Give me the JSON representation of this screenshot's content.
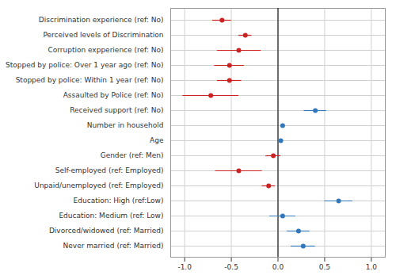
{
  "chart_data": {
    "type": "coefficient",
    "categories": [
      "Discrimination experience (ref: No)",
      "Perceived levels of Discrimination",
      "Corruption expperience (ref: No)",
      "Stopped by police: Over 1 year ago (ref: No)",
      "Stopped by police: Within 1 year (ref: No)",
      "Assaulted by Police (ref: No)",
      "Received support (ref: No)",
      "Number in household",
      "Age",
      "Gender (ref: Men)",
      "Self-employed (ref: Employed)",
      "Unpaid/unemployed (ref: Employed)",
      "Education: High (ref:Low)",
      "Education: Medium (ref: Low)",
      "Divorced/widowed (ref: Married)",
      "Never married (ref: Married)"
    ],
    "values": [
      -0.6,
      -0.35,
      -0.42,
      -0.52,
      -0.52,
      -0.72,
      0.4,
      0.05,
      0.03,
      -0.05,
      -0.42,
      -0.1,
      0.65,
      0.05,
      0.22,
      0.27
    ],
    "ci_low": [
      -0.7,
      -0.42,
      -0.65,
      -0.68,
      -0.65,
      -1.02,
      0.28,
      0.03,
      0.01,
      -0.13,
      -0.67,
      -0.17,
      0.5,
      -0.09,
      0.1,
      0.14
    ],
    "ci_high": [
      -0.5,
      -0.28,
      -0.18,
      -0.36,
      -0.39,
      -0.42,
      0.52,
      0.07,
      0.05,
      0.03,
      -0.17,
      -0.03,
      0.8,
      0.19,
      0.34,
      0.4
    ],
    "colors": [
      "#cc2222",
      "#cc2222",
      "#cc2222",
      "#cc2222",
      "#cc2222",
      "#cc2222",
      "#3377bb",
      "#3377bb",
      "#3377bb",
      "#cc2222",
      "#cc2222",
      "#cc2222",
      "#3377bb",
      "#3377bb",
      "#3377bb",
      "#3377bb"
    ],
    "vline_x": 0.0,
    "xlim": [
      -1.15,
      1.15
    ],
    "xticks": [
      {
        "value": -1.0,
        "label": "-1.0"
      },
      -0.5,
      {
        "value": 0.0,
        "label": "0.0"
      },
      0.5,
      {
        "value": 1.0,
        "label": "1.0"
      }
    ],
    "grid": true
  }
}
